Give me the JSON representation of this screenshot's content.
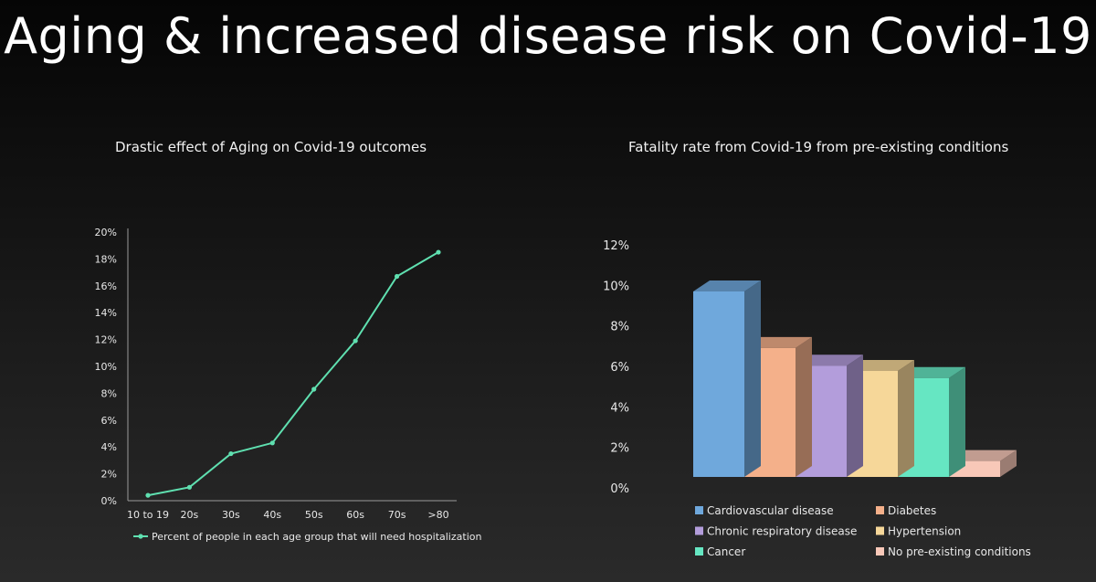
{
  "page": {
    "title": "Aging & increased disease risk on Covid-19"
  },
  "chart_data": [
    {
      "type": "line",
      "title": "Drastic effect of Aging on Covid-19 outcomes",
      "categories": [
        "10 to 19",
        "20s",
        "30s",
        "40s",
        "50s",
        "60s",
        "70s",
        ">80"
      ],
      "series": [
        {
          "name": "Percent of people in each age group that will need hospitalization",
          "values": [
            0.4,
            1.0,
            3.5,
            4.3,
            8.3,
            11.9,
            16.7,
            18.5
          ],
          "color": "#5fe0b0"
        }
      ],
      "y_ticks": [
        "0%",
        "2%",
        "4%",
        "6%",
        "8%",
        "10%",
        "12%",
        "14%",
        "16%",
        "18%",
        "20%"
      ],
      "ylim": [
        0,
        20
      ],
      "legend": "bottom"
    },
    {
      "type": "bar",
      "title": "Fatality rate from Covid-19 from pre-existing conditions",
      "categories": [
        "Cardiovascular disease",
        "Diabetes",
        "Chronic respiratory disease",
        "Hypertension",
        "Cancer",
        "No pre-existing conditions"
      ],
      "values": [
        10.5,
        7.3,
        6.3,
        6.0,
        5.6,
        0.9
      ],
      "colors": [
        "#6fa8dc",
        "#f4b08a",
        "#b39ddb",
        "#f6d799",
        "#66e6c2",
        "#f8c8b8"
      ],
      "y_ticks": [
        "0%",
        "2%",
        "4%",
        "6%",
        "8%",
        "10%",
        "12%"
      ],
      "ylim": [
        0,
        12
      ],
      "legend": "bottom"
    }
  ]
}
